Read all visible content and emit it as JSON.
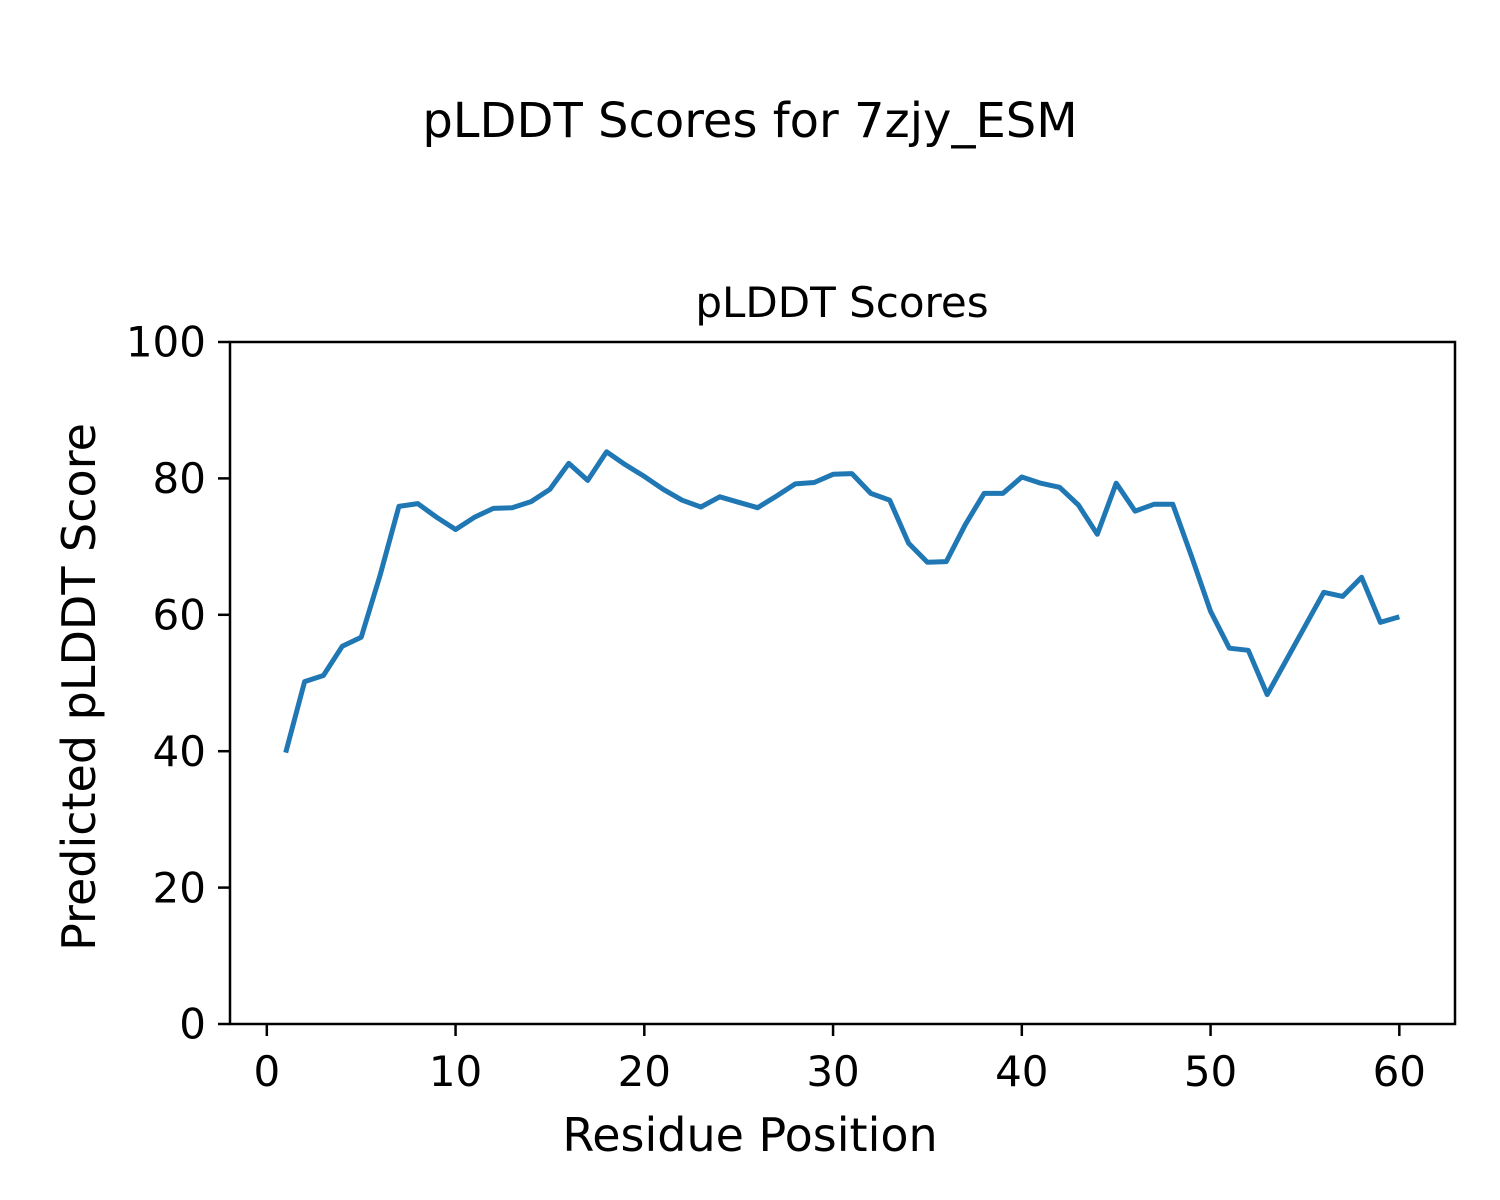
{
  "figure": {
    "suptitle": "pLDDT Scores for 7zjy_ESM",
    "background_color": "#ffffff",
    "text_color": "#000000"
  },
  "chart_data": {
    "type": "line",
    "title": "pLDDT Scores",
    "xlabel": "Residue Position",
    "ylabel": "Predicted pLDDT Score",
    "x": [
      1,
      2,
      3,
      4,
      5,
      6,
      7,
      8,
      9,
      10,
      11,
      12,
      13,
      14,
      15,
      16,
      17,
      18,
      19,
      20,
      21,
      22,
      23,
      24,
      25,
      26,
      27,
      28,
      29,
      30,
      31,
      32,
      33,
      34,
      35,
      36,
      37,
      38,
      39,
      40,
      41,
      42,
      43,
      44,
      45,
      46,
      47,
      48,
      49,
      50,
      51,
      52,
      53,
      54,
      55,
      56,
      57,
      58,
      59,
      60
    ],
    "y": [
      39.8,
      50.2,
      51.1,
      55.4,
      56.7,
      65.8,
      75.9,
      76.3,
      74.3,
      72.5,
      74.3,
      75.6,
      75.7,
      76.6,
      78.4,
      82.2,
      79.7,
      83.9,
      82.0,
      80.3,
      78.4,
      76.8,
      75.8,
      77.3,
      76.5,
      75.7,
      77.4,
      79.2,
      79.4,
      80.6,
      80.7,
      77.8,
      76.8,
      70.5,
      67.7,
      67.8,
      73.2,
      77.8,
      77.8,
      80.2,
      79.3,
      78.7,
      76.1,
      71.8,
      79.3,
      75.2,
      76.2,
      76.2,
      68.5,
      60.5,
      55.1,
      54.8,
      48.3,
      53.3,
      58.3,
      63.3,
      62.7,
      65.5,
      58.9,
      59.7
    ],
    "xlim": [
      -1.95,
      62.95
    ],
    "ylim": [
      0,
      100
    ],
    "xticks": [
      0,
      10,
      20,
      30,
      40,
      50,
      60
    ],
    "yticks": [
      0,
      20,
      40,
      60,
      80,
      100
    ],
    "line_color": "#1f77b4",
    "line_width": 5,
    "axis_color": "#000000",
    "grid": false,
    "legend": "none",
    "markers": "none"
  }
}
